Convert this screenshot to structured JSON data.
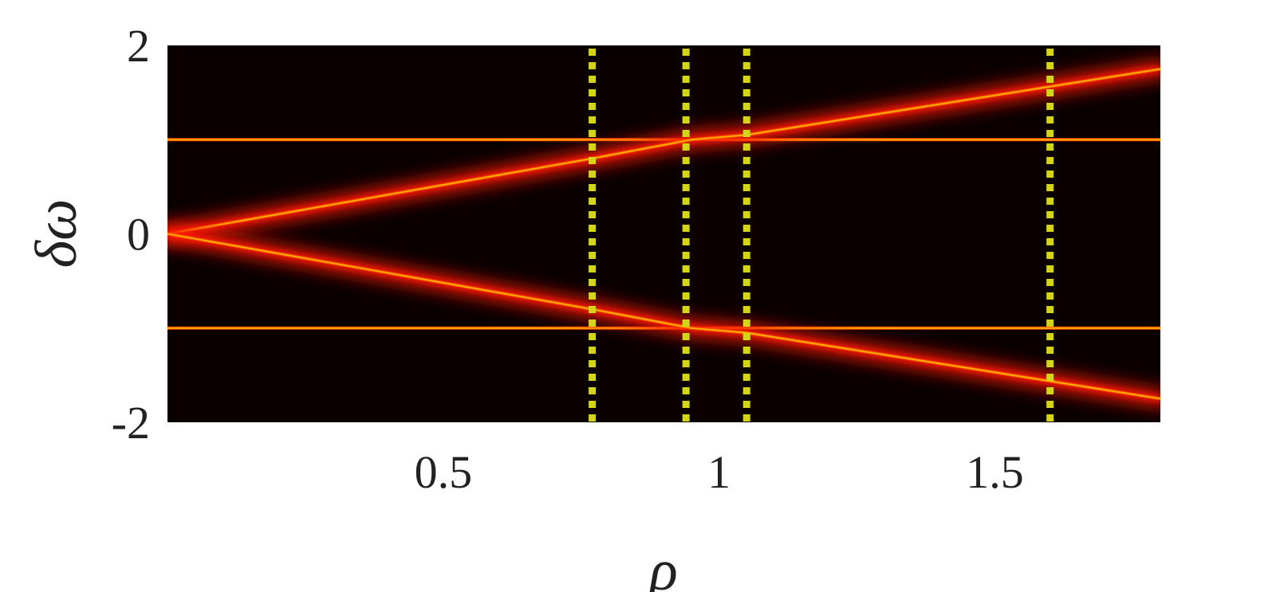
{
  "chart_data": {
    "type": "heatmap",
    "title": "",
    "xlabel": "ρ",
    "ylabel": "δω",
    "xlim": [
      0.0,
      1.8
    ],
    "ylim": [
      -2,
      2
    ],
    "x_ticks": [
      {
        "value": 0.5,
        "label": "0.5"
      },
      {
        "value": 1.0,
        "label": "1"
      },
      {
        "value": 1.5,
        "label": "1.5"
      }
    ],
    "y_ticks": [
      {
        "value": 2,
        "label": "2"
      },
      {
        "value": 0,
        "label": "0"
      },
      {
        "value": -2,
        "label": "-2"
      }
    ],
    "colormap": [
      "#0a0000",
      "#ff1a00",
      "#ffb000"
    ],
    "background_color": "#0a0000",
    "branches": [
      {
        "points": [
          [
            0.0,
            1.0
          ],
          [
            1.8,
            1.0
          ]
        ],
        "kind": "flat"
      },
      {
        "points": [
          [
            0.0,
            -1.0
          ],
          [
            1.8,
            -1.0
          ]
        ],
        "kind": "flat"
      },
      {
        "points": [
          [
            0.0,
            0.0
          ],
          [
            0.77,
            0.8
          ],
          [
            0.95,
            1.0
          ],
          [
            1.05,
            1.05
          ],
          [
            1.8,
            1.75
          ]
        ],
        "kind": "diagonal"
      },
      {
        "points": [
          [
            0.0,
            0.0
          ],
          [
            0.77,
            -0.8
          ],
          [
            0.95,
            -1.0
          ],
          [
            1.05,
            -1.05
          ],
          [
            1.8,
            -1.75
          ]
        ],
        "kind": "diagonal"
      }
    ],
    "vertical_markers": {
      "values": [
        0.77,
        0.94,
        1.05,
        1.6
      ],
      "color": "#d4d41a",
      "style": "dotted"
    }
  }
}
